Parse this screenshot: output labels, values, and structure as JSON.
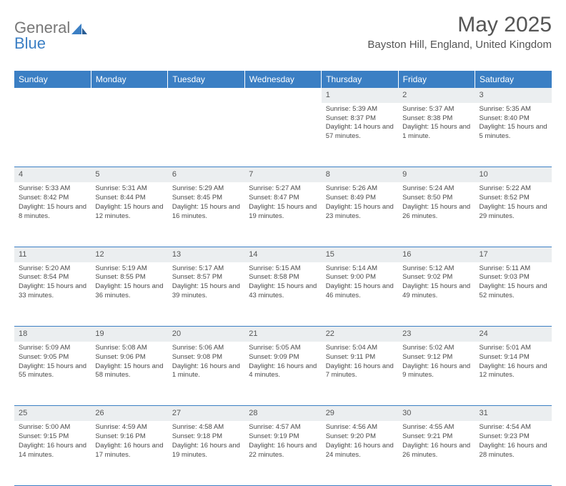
{
  "brand": {
    "part1": "General",
    "part2": "Blue"
  },
  "title": "May 2025",
  "location": "Bayston Hill, England, United Kingdom",
  "colors": {
    "header_bg": "#3b7fc4",
    "header_text": "#ffffff",
    "daynum_bg": "#ebeef0",
    "body_text": "#4a4a4a",
    "rule": "#3b7fc4",
    "page_bg": "#ffffff"
  },
  "weekdays": [
    "Sunday",
    "Monday",
    "Tuesday",
    "Wednesday",
    "Thursday",
    "Friday",
    "Saturday"
  ],
  "weeks": [
    [
      null,
      null,
      null,
      null,
      {
        "n": "1",
        "sr": "5:39 AM",
        "ss": "8:37 PM",
        "dl": "14 hours and 57 minutes."
      },
      {
        "n": "2",
        "sr": "5:37 AM",
        "ss": "8:38 PM",
        "dl": "15 hours and 1 minute."
      },
      {
        "n": "3",
        "sr": "5:35 AM",
        "ss": "8:40 PM",
        "dl": "15 hours and 5 minutes."
      }
    ],
    [
      {
        "n": "4",
        "sr": "5:33 AM",
        "ss": "8:42 PM",
        "dl": "15 hours and 8 minutes."
      },
      {
        "n": "5",
        "sr": "5:31 AM",
        "ss": "8:44 PM",
        "dl": "15 hours and 12 minutes."
      },
      {
        "n": "6",
        "sr": "5:29 AM",
        "ss": "8:45 PM",
        "dl": "15 hours and 16 minutes."
      },
      {
        "n": "7",
        "sr": "5:27 AM",
        "ss": "8:47 PM",
        "dl": "15 hours and 19 minutes."
      },
      {
        "n": "8",
        "sr": "5:26 AM",
        "ss": "8:49 PM",
        "dl": "15 hours and 23 minutes."
      },
      {
        "n": "9",
        "sr": "5:24 AM",
        "ss": "8:50 PM",
        "dl": "15 hours and 26 minutes."
      },
      {
        "n": "10",
        "sr": "5:22 AM",
        "ss": "8:52 PM",
        "dl": "15 hours and 29 minutes."
      }
    ],
    [
      {
        "n": "11",
        "sr": "5:20 AM",
        "ss": "8:54 PM",
        "dl": "15 hours and 33 minutes."
      },
      {
        "n": "12",
        "sr": "5:19 AM",
        "ss": "8:55 PM",
        "dl": "15 hours and 36 minutes."
      },
      {
        "n": "13",
        "sr": "5:17 AM",
        "ss": "8:57 PM",
        "dl": "15 hours and 39 minutes."
      },
      {
        "n": "14",
        "sr": "5:15 AM",
        "ss": "8:58 PM",
        "dl": "15 hours and 43 minutes."
      },
      {
        "n": "15",
        "sr": "5:14 AM",
        "ss": "9:00 PM",
        "dl": "15 hours and 46 minutes."
      },
      {
        "n": "16",
        "sr": "5:12 AM",
        "ss": "9:02 PM",
        "dl": "15 hours and 49 minutes."
      },
      {
        "n": "17",
        "sr": "5:11 AM",
        "ss": "9:03 PM",
        "dl": "15 hours and 52 minutes."
      }
    ],
    [
      {
        "n": "18",
        "sr": "5:09 AM",
        "ss": "9:05 PM",
        "dl": "15 hours and 55 minutes."
      },
      {
        "n": "19",
        "sr": "5:08 AM",
        "ss": "9:06 PM",
        "dl": "15 hours and 58 minutes."
      },
      {
        "n": "20",
        "sr": "5:06 AM",
        "ss": "9:08 PM",
        "dl": "16 hours and 1 minute."
      },
      {
        "n": "21",
        "sr": "5:05 AM",
        "ss": "9:09 PM",
        "dl": "16 hours and 4 minutes."
      },
      {
        "n": "22",
        "sr": "5:04 AM",
        "ss": "9:11 PM",
        "dl": "16 hours and 7 minutes."
      },
      {
        "n": "23",
        "sr": "5:02 AM",
        "ss": "9:12 PM",
        "dl": "16 hours and 9 minutes."
      },
      {
        "n": "24",
        "sr": "5:01 AM",
        "ss": "9:14 PM",
        "dl": "16 hours and 12 minutes."
      }
    ],
    [
      {
        "n": "25",
        "sr": "5:00 AM",
        "ss": "9:15 PM",
        "dl": "16 hours and 14 minutes."
      },
      {
        "n": "26",
        "sr": "4:59 AM",
        "ss": "9:16 PM",
        "dl": "16 hours and 17 minutes."
      },
      {
        "n": "27",
        "sr": "4:58 AM",
        "ss": "9:18 PM",
        "dl": "16 hours and 19 minutes."
      },
      {
        "n": "28",
        "sr": "4:57 AM",
        "ss": "9:19 PM",
        "dl": "16 hours and 22 minutes."
      },
      {
        "n": "29",
        "sr": "4:56 AM",
        "ss": "9:20 PM",
        "dl": "16 hours and 24 minutes."
      },
      {
        "n": "30",
        "sr": "4:55 AM",
        "ss": "9:21 PM",
        "dl": "16 hours and 26 minutes."
      },
      {
        "n": "31",
        "sr": "4:54 AM",
        "ss": "9:23 PM",
        "dl": "16 hours and 28 minutes."
      }
    ]
  ],
  "labels": {
    "sunrise": "Sunrise:",
    "sunset": "Sunset:",
    "daylight": "Daylight:"
  }
}
